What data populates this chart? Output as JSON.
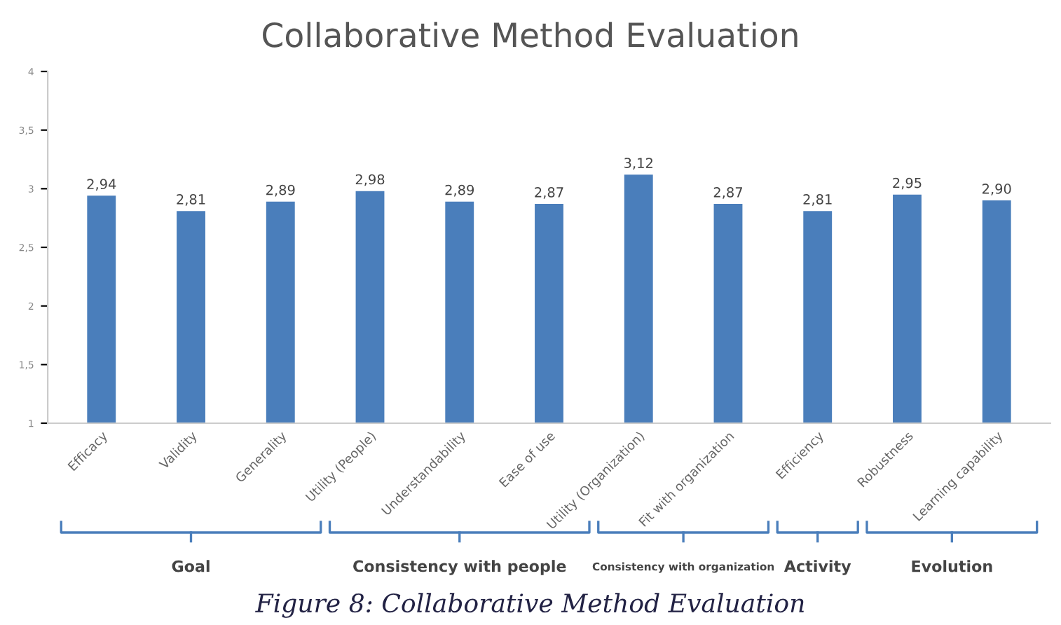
{
  "chart_data": {
    "type": "bar",
    "title": "Collaborative Method Evaluation",
    "categories": [
      "Efficacy",
      "Validity",
      "Generality",
      "Utility (People)",
      "Understandability",
      "Ease of use",
      "Utility (Organization)",
      "Fit with organization",
      "Efficiency",
      "Robustness",
      "Learning capability"
    ],
    "values": [
      2.94,
      2.81,
      2.89,
      2.98,
      2.89,
      2.87,
      3.12,
      2.87,
      2.81,
      2.95,
      2.9
    ],
    "value_labels": [
      "2,94",
      "2,81",
      "2,89",
      "2,98",
      "2,89",
      "2,87",
      "3,12",
      "2,87",
      "2,81",
      "2,95",
      "2,90"
    ],
    "color": "#4a7ebb",
    "ylim": [
      1,
      4
    ],
    "yticks": [
      1,
      {
        "value": 1.5,
        "label": "1,5"
      },
      2,
      {
        "value": 2.5,
        "label": "2,5"
      },
      3,
      {
        "value": 3.5,
        "label": "3,5"
      },
      4
    ],
    "grid": false,
    "legend": false,
    "annotations": [
      "Goal",
      "Consistency with people",
      "Consistency with organization",
      "Activity",
      "Evolution",
      "Figure 8: Collaborative Method Evaluation"
    ]
  }
}
